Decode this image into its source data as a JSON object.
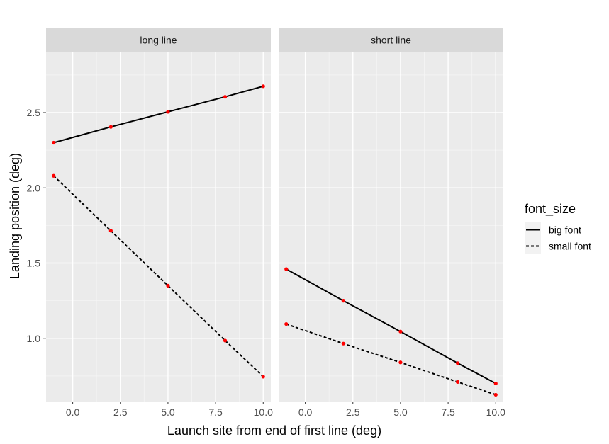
{
  "chart_data": {
    "type": "line",
    "xlabel": "Launch site from end of first line (deg)",
    "ylabel": "Landing position (deg)",
    "xlim": [
      -1.4,
      10.4
    ],
    "ylim": [
      0.58,
      2.9
    ],
    "x_ticks": [
      {
        "value": 0.0,
        "label": "0.0"
      },
      {
        "value": 2.5,
        "label": "2.5"
      },
      {
        "value": 5.0,
        "label": "5.0"
      },
      {
        "value": 7.5,
        "label": "7.5"
      },
      {
        "value": 10.0,
        "label": "10.0"
      }
    ],
    "y_ticks": [
      {
        "value": 1.0,
        "label": "1.0"
      },
      {
        "value": 1.5,
        "label": "1.5"
      },
      {
        "value": 2.0,
        "label": "2.0"
      },
      {
        "value": 2.5,
        "label": "2.5"
      }
    ],
    "grid": true,
    "legend": {
      "title": "font_size",
      "placement": "right",
      "entries": [
        {
          "label": "big font",
          "linetype": "solid"
        },
        {
          "label": "small font",
          "linetype": "dashed"
        }
      ]
    },
    "point_color": "#ff0000",
    "line_color": "#000000",
    "panels": [
      {
        "strip": "long line",
        "series": [
          {
            "name": "big font",
            "linetype": "solid",
            "x": [
              -1,
              2,
              5,
              8,
              10
            ],
            "y": [
              2.3,
              2.405,
              2.505,
              2.605,
              2.675
            ]
          },
          {
            "name": "small font",
            "linetype": "dashed",
            "x": [
              -1,
              2,
              5,
              8,
              10
            ],
            "y": [
              2.08,
              1.715,
              1.35,
              0.985,
              0.745
            ]
          }
        ]
      },
      {
        "strip": "short line",
        "series": [
          {
            "name": "big font",
            "linetype": "solid",
            "x": [
              -1,
              2,
              5,
              8,
              10
            ],
            "y": [
              1.46,
              1.25,
              1.045,
              0.835,
              0.7
            ]
          },
          {
            "name": "small font",
            "linetype": "dashed",
            "x": [
              -1,
              2,
              5,
              8,
              10
            ],
            "y": [
              1.095,
              0.965,
              0.84,
              0.71,
              0.625
            ]
          }
        ]
      }
    ]
  }
}
